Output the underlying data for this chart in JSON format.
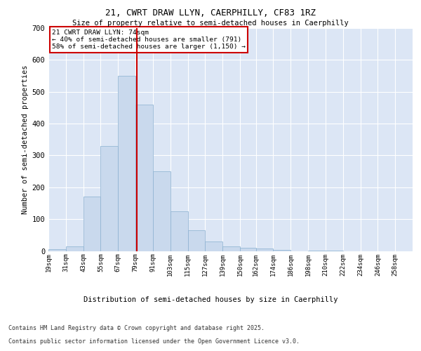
{
  "title_line1": "21, CWRT DRAW LLYN, CAERPHILLY, CF83 1RZ",
  "title_line2": "Size of property relative to semi-detached houses in Caerphilly",
  "xlabel": "Distribution of semi-detached houses by size in Caerphilly",
  "ylabel": "Number of semi-detached properties",
  "bin_labels": [
    "19sqm",
    "31sqm",
    "43sqm",
    "55sqm",
    "67sqm",
    "79sqm",
    "91sqm",
    "103sqm",
    "115sqm",
    "127sqm",
    "139sqm",
    "150sqm",
    "162sqm",
    "174sqm",
    "186sqm",
    "198sqm",
    "210sqm",
    "222sqm",
    "234sqm",
    "246sqm",
    "258sqm"
  ],
  "bar_heights": [
    5,
    15,
    170,
    330,
    550,
    460,
    250,
    125,
    65,
    30,
    15,
    10,
    8,
    3,
    0,
    2,
    1,
    0,
    0,
    0,
    0
  ],
  "bar_color": "#c9d9ed",
  "bar_edge_color": "#8ab0d0",
  "vline_x": 74,
  "bin_edges": [
    13,
    25,
    37,
    49,
    61,
    73,
    85,
    97,
    109,
    121,
    133,
    145,
    156,
    168,
    180,
    192,
    204,
    216,
    228,
    240,
    252,
    264
  ],
  "annotation_title": "21 CWRT DRAW LLYN: 74sqm",
  "annotation_line2": "← 40% of semi-detached houses are smaller (791)",
  "annotation_line3": "58% of semi-detached houses are larger (1,150) →",
  "vline_color": "#cc0000",
  "annotation_box_edge": "#cc0000",
  "ylim": [
    0,
    700
  ],
  "yticks": [
    0,
    100,
    200,
    300,
    400,
    500,
    600,
    700
  ],
  "plot_bg_color": "#dce6f5",
  "footer_line1": "Contains HM Land Registry data © Crown copyright and database right 2025.",
  "footer_line2": "Contains public sector information licensed under the Open Government Licence v3.0."
}
